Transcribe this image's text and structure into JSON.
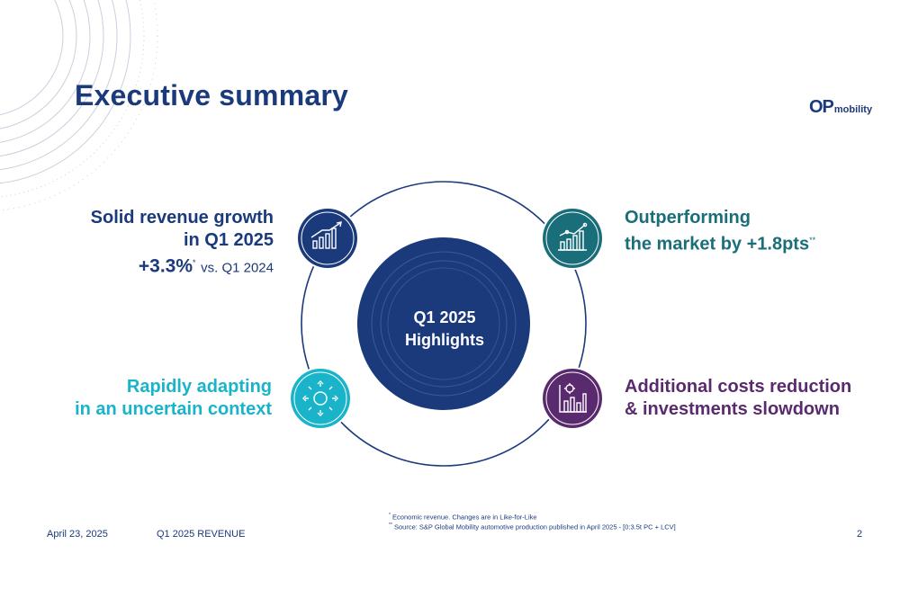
{
  "page": {
    "title": "Executive summary"
  },
  "logo": {
    "mark": "OP",
    "text": "mobility"
  },
  "center": {
    "line1": "Q1 2025",
    "line2": "Highlights"
  },
  "quadrants": {
    "top_left": {
      "line1": "Solid revenue growth",
      "line2": "in Q1 2025",
      "value": "+3.3%",
      "value_mark": "*",
      "value_suffix": "vs. Q1 2024",
      "icon": "growth-bar-chart-icon",
      "color": "#1a3a7c"
    },
    "top_right": {
      "line1": "Outperforming",
      "line2": "the market by +1.8pts",
      "mark": "**",
      "icon": "line-bar-chart-icon",
      "color": "#1a6e7a"
    },
    "bottom_left": {
      "line1": "Rapidly adapting",
      "line2": "in an uncertain context",
      "icon": "sun-arrows-icon",
      "color": "#19b4c9"
    },
    "bottom_right": {
      "line1": "Additional costs reduction",
      "line2": "& investments slowdown",
      "icon": "gear-chart-icon",
      "color": "#5a2a6e"
    }
  },
  "footnotes": {
    "note1_mark": "*",
    "note1": "Economic revenue. Changes are in Like-for-Like",
    "note2_mark": "**",
    "note2": "Source: S&P Global Mobility automotive production published in April 2025 - [0:3.5t PC + LCV]"
  },
  "footer": {
    "date": "April 23, 2025",
    "section": "Q1 2025 REVENUE",
    "page_number": "2"
  },
  "colors": {
    "navy": "#1a3a7c",
    "teal": "#1a6e7a",
    "cyan": "#19b4c9",
    "purple": "#5a2a6e"
  }
}
